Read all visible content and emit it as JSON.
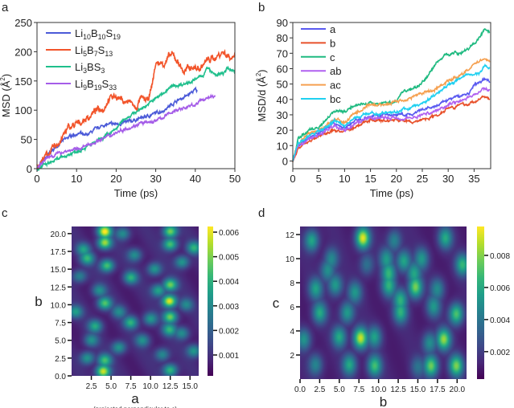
{
  "panels": {
    "a": "a",
    "b": "b",
    "c": "c",
    "d": "d"
  },
  "chart_data": [
    {
      "id": "a",
      "type": "line",
      "xlabel": "Time (ps)",
      "ylabel": "MSD (Å²)",
      "xlim": [
        0,
        50
      ],
      "ylim": [
        0,
        250
      ],
      "xticks": [
        0,
        10,
        20,
        30,
        40,
        50
      ],
      "yticks": [
        0,
        50,
        100,
        150,
        200,
        250
      ],
      "legend": "top-left",
      "series": [
        {
          "name": "Li10B10S19",
          "color": "#4b5ad8",
          "x": [
            0,
            3,
            6,
            9,
            11,
            12,
            15,
            17,
            20,
            23,
            25,
            28,
            32,
            35,
            38,
            40,
            40.5
          ],
          "y": [
            0,
            25,
            45,
            58,
            60,
            55,
            68,
            75,
            76,
            80,
            84,
            90,
            100,
            115,
            125,
            135,
            132
          ]
        },
        {
          "name": "Li5B7S13",
          "color": "#f2542a",
          "x": [
            0,
            2,
            5,
            8,
            10,
            13,
            15,
            17,
            18,
            20,
            22,
            24,
            25,
            26,
            27,
            28,
            29,
            30,
            32,
            34,
            36,
            37,
            39,
            41,
            43,
            45,
            47,
            49,
            50
          ],
          "y": [
            5,
            20,
            40,
            70,
            75,
            88,
            100,
            105,
            120,
            125,
            115,
            112,
            100,
            118,
            118,
            115,
            140,
            180,
            180,
            195,
            180,
            165,
            175,
            170,
            185,
            190,
            200,
            190,
            195
          ]
        },
        {
          "name": "Li3BS3",
          "color": "#1fbf8c",
          "x": [
            0,
            5,
            10,
            15,
            18,
            20,
            22,
            25,
            28,
            31,
            34,
            37,
            40,
            42,
            43,
            45,
            47,
            48,
            50
          ],
          "y": [
            0,
            15,
            30,
            45,
            58,
            68,
            85,
            97,
            110,
            125,
            140,
            145,
            152,
            160,
            172,
            160,
            162,
            170,
            168
          ]
        },
        {
          "name": "Li9B19S33",
          "color": "#a55de8",
          "x": [
            0,
            3,
            7,
            10,
            13,
            16,
            18,
            20,
            22,
            24,
            26,
            28,
            30,
            32,
            34,
            36,
            38,
            40,
            42,
            44,
            45
          ],
          "y": [
            2,
            20,
            30,
            33,
            40,
            50,
            55,
            62,
            68,
            72,
            78,
            78,
            82,
            88,
            97,
            102,
            105,
            110,
            118,
            124,
            122
          ]
        }
      ]
    },
    {
      "id": "b",
      "type": "line",
      "xlabel": "Time (ps)",
      "ylabel": "MSD/d (Å²)",
      "xlim": [
        0,
        38.2
      ],
      "ylim": [
        -5,
        90
      ],
      "xticks": [
        0,
        5,
        10,
        15,
        20,
        25,
        30,
        35
      ],
      "yticks": [
        0,
        10,
        20,
        30,
        40,
        50,
        60,
        70,
        80,
        90
      ],
      "legend": "top-left",
      "series": [
        {
          "name": "a",
          "color": "#5a5af0",
          "x": [
            0,
            1,
            3,
            5,
            8,
            10,
            12,
            15,
            18,
            20,
            23,
            25,
            28,
            30,
            32,
            34,
            35,
            37,
            38
          ],
          "y": [
            0,
            10,
            15,
            18,
            25,
            21,
            26,
            29,
            30,
            30,
            30,
            33,
            36,
            40,
            42,
            44,
            49,
            53,
            52
          ]
        },
        {
          "name": "b",
          "color": "#e8502a",
          "x": [
            0,
            1,
            3,
            5,
            8,
            10,
            12,
            15,
            18,
            20,
            23,
            25,
            28,
            30,
            32,
            34,
            36,
            37,
            38
          ],
          "y": [
            0,
            8,
            13,
            16,
            20,
            19,
            22,
            27,
            26,
            27,
            25,
            27,
            30,
            35,
            36,
            37,
            40,
            42,
            40
          ]
        },
        {
          "name": "c",
          "color": "#1fba80",
          "x": [
            0,
            1,
            3,
            5,
            8,
            10,
            12,
            15,
            18,
            20,
            21,
            24,
            26,
            28,
            30,
            32,
            34,
            36,
            37,
            38
          ],
          "y": [
            0,
            14,
            20,
            22,
            33,
            32,
            37,
            37,
            38,
            38,
            45,
            48,
            55,
            65,
            70,
            70,
            73,
            80,
            85,
            83
          ]
        },
        {
          "name": "ab",
          "color": "#b060f0",
          "x": [
            0,
            1,
            3,
            5,
            8,
            10,
            12,
            15,
            18,
            20,
            23,
            25,
            28,
            30,
            32,
            34,
            35,
            37,
            38
          ],
          "y": [
            0,
            9,
            14,
            17,
            23,
            20,
            24,
            28,
            28,
            28,
            28,
            30,
            33,
            37,
            39,
            41,
            43,
            47,
            46
          ]
        },
        {
          "name": "ac",
          "color": "#f5a050",
          "x": [
            0,
            1,
            3,
            5,
            8,
            10,
            12,
            15,
            18,
            20,
            22,
            25,
            27,
            30,
            32,
            34,
            36,
            37,
            38
          ],
          "y": [
            0,
            12,
            17,
            20,
            27,
            25,
            31,
            36,
            37,
            39,
            40,
            44,
            46,
            52,
            55,
            60,
            65,
            67,
            65
          ]
        },
        {
          "name": "bc",
          "color": "#20d0f0",
          "x": [
            0,
            1,
            3,
            5,
            8,
            10,
            12,
            15,
            18,
            20,
            22,
            25,
            27,
            30,
            32,
            34,
            36,
            37,
            38
          ],
          "y": [
            0,
            11,
            16,
            19,
            26,
            23,
            28,
            31,
            31,
            32,
            34,
            37,
            42,
            50,
            53,
            56,
            57,
            62,
            60
          ]
        }
      ]
    },
    {
      "id": "c",
      "type": "heatmap",
      "xlabel": "a",
      "xlabel_note": "(projected perpendicular to c)",
      "ylabel": "b",
      "xlim": [
        0,
        16.1
      ],
      "ylim": [
        0,
        21.0
      ],
      "xticks": [
        "2.5",
        "5.0",
        "7.5",
        "10.0",
        "12.5",
        "15.0"
      ],
      "yticks": [
        "0.0",
        "2.5",
        "5.0",
        "7.5",
        "10.0",
        "12.5",
        "15.0",
        "17.5",
        "20.0"
      ],
      "colorbar": {
        "range": [
          0.00015,
          0.00623
        ],
        "ticks": [
          "0.001",
          "0.002",
          "0.003",
          "0.004",
          "0.005",
          "0.006"
        ],
        "colormap": "viridis"
      },
      "background": 0.0008,
      "peaks": [
        [
          4.2,
          20.3,
          0.0062
        ],
        [
          4.2,
          18.7,
          0.0054
        ],
        [
          4.5,
          15.5,
          0.0046
        ],
        [
          4.2,
          10.2,
          0.0046
        ],
        [
          4.2,
          2.2,
          0.0043
        ],
        [
          4.0,
          0.6,
          0.0059
        ],
        [
          12.5,
          20.3,
          0.0051
        ],
        [
          12.5,
          18.5,
          0.0046
        ],
        [
          12.5,
          12.8,
          0.0049
        ],
        [
          12.4,
          10.5,
          0.0062
        ],
        [
          12.5,
          8.3,
          0.0049
        ],
        [
          12.4,
          6.5,
          0.004
        ],
        [
          12.5,
          0.8,
          0.0043
        ],
        [
          2.0,
          16.5,
          0.004
        ],
        [
          1.5,
          17.8,
          0.0035
        ],
        [
          7.5,
          13.8,
          0.004
        ],
        [
          7.5,
          7.5,
          0.004
        ],
        [
          3.0,
          7.0,
          0.0038
        ],
        [
          15.5,
          18.0,
          0.004
        ],
        [
          15.5,
          3.5,
          0.0035
        ],
        [
          10.5,
          15.0,
          0.0035
        ],
        [
          11.0,
          12.0,
          0.0038
        ],
        [
          2.0,
          2.5,
          0.0035
        ],
        [
          9.0,
          5.0,
          0.0032
        ],
        [
          0.5,
          9.0,
          0.0035
        ],
        [
          6.5,
          20.0,
          0.0032
        ],
        [
          1.0,
          14.0,
          0.003
        ],
        [
          10.0,
          8.0,
          0.0035
        ],
        [
          14.5,
          10.0,
          0.003
        ],
        [
          6.0,
          4.0,
          0.0035
        ],
        [
          3.5,
          12.0,
          0.0032
        ],
        [
          8.0,
          17.0,
          0.0032
        ],
        [
          14.0,
          16.0,
          0.0035
        ],
        [
          11.5,
          3.0,
          0.0032
        ],
        [
          14.0,
          6.0,
          0.0032
        ],
        [
          2.5,
          5.0,
          0.0032
        ],
        [
          6.0,
          9.0,
          0.003
        ]
      ]
    },
    {
      "id": "d",
      "type": "heatmap",
      "xlabel": "b",
      "ylabel": "c",
      "xlim": [
        0,
        21.2
      ],
      "ylim": [
        0,
        12.67
      ],
      "xticks": [
        "0.0",
        "2.5",
        "5.0",
        "7.5",
        "10.0",
        "12.5",
        "15.0",
        "17.5",
        "20.0"
      ],
      "yticks": [
        "2",
        "4",
        "6",
        "8",
        "10",
        "12"
      ],
      "colorbar": {
        "range": [
          0.00029,
          0.0098
        ],
        "ticks": [
          "0.002",
          "0.004",
          "0.006",
          "0.008"
        ],
        "colormap": "viridis"
      },
      "background": 0.0012,
      "peaks": [
        [
          8.0,
          11.7,
          0.0095
        ],
        [
          7.7,
          3.4,
          0.0091
        ],
        [
          14.7,
          7.6,
          0.0078
        ],
        [
          18.3,
          3.3,
          0.0082
        ],
        [
          16.7,
          1.1,
          0.0078
        ],
        [
          19.9,
          1.1,
          0.0078
        ],
        [
          19.9,
          5.4,
          0.0073
        ],
        [
          20.7,
          9.5,
          0.0065
        ],
        [
          18.5,
          11.7,
          0.006
        ],
        [
          1.5,
          11.5,
          0.006
        ],
        [
          2.5,
          5.5,
          0.006
        ],
        [
          2.0,
          7.5,
          0.0056
        ],
        [
          12.8,
          5.5,
          0.006
        ],
        [
          12.8,
          6.6,
          0.006
        ],
        [
          11.3,
          7.7,
          0.006
        ],
        [
          11.3,
          8.8,
          0.006
        ],
        [
          13.2,
          9.8,
          0.006
        ],
        [
          14.5,
          8.8,
          0.0056
        ],
        [
          9.5,
          1.1,
          0.0069
        ],
        [
          6.3,
          1.2,
          0.006
        ],
        [
          5.0,
          3.5,
          0.006
        ],
        [
          6.0,
          5.5,
          0.0056
        ],
        [
          7.0,
          7.2,
          0.0052
        ],
        [
          9.5,
          3.5,
          0.0056
        ],
        [
          2.0,
          1.2,
          0.0047
        ],
        [
          0.5,
          3.3,
          0.0052
        ],
        [
          15.5,
          10.0,
          0.0052
        ],
        [
          4.0,
          10.0,
          0.0047
        ],
        [
          4.5,
          7.8,
          0.0056
        ],
        [
          16.5,
          3.0,
          0.0052
        ],
        [
          17.0,
          6.0,
          0.0052
        ],
        [
          12.0,
          11.5,
          0.0047
        ],
        [
          11.0,
          10.0,
          0.0052
        ],
        [
          15.0,
          1.0,
          0.0038
        ],
        [
          3.5,
          9.0,
          0.005
        ],
        [
          8.5,
          9.5,
          0.004
        ],
        [
          17.5,
          7.5,
          0.0048
        ]
      ]
    }
  ]
}
